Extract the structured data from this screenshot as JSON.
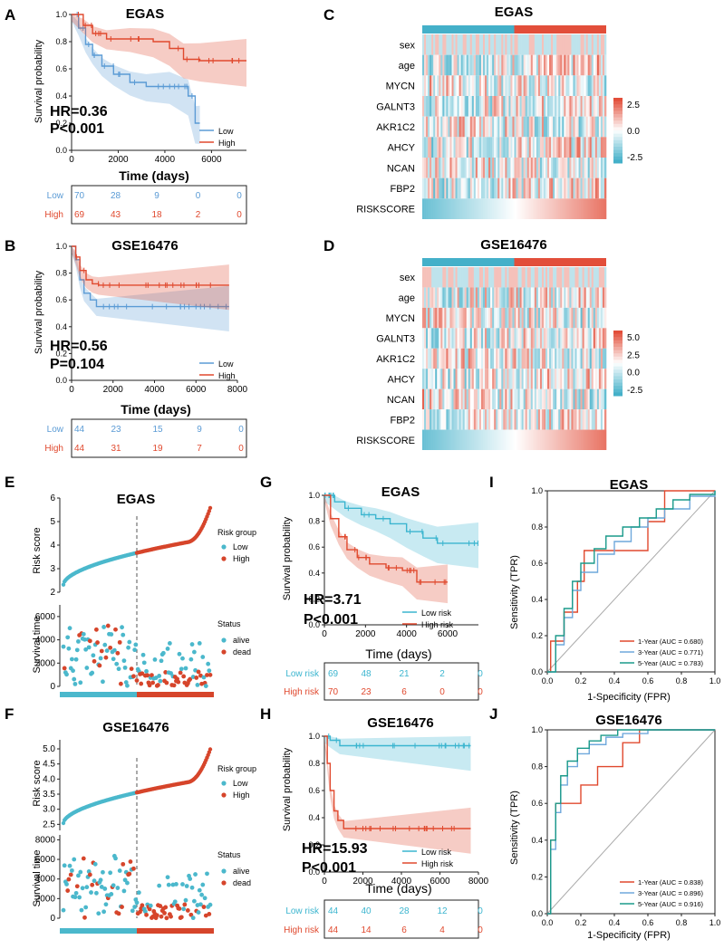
{
  "colors": {
    "low": "#5b9bd5",
    "high": "#e0492e",
    "lowrisk": "#3bb5cf",
    "risk_low": "#4bb8cc",
    "risk_high": "#d6452b",
    "roc1": "#e0492e",
    "roc3": "#6fa8dc",
    "roc5": "#1a9a8a",
    "hm_low": "#44b0c9",
    "hm_high": "#e24e3a"
  },
  "common": {
    "surv_ylabel": "Survival probability",
    "time_days": "Time (days)",
    "time_days_lc": "Time (days)",
    "low": "Low",
    "high": "High",
    "low_risk": "Low risk",
    "high_risk": "High risk",
    "risk_score": "Risk score",
    "survival_time": "Survival time",
    "risk_group": "Risk group",
    "status": "Status",
    "alive": "alive",
    "dead": "dead",
    "tpr": "Sensitivity (TPR)",
    "fpr": "1-Specificity (FPR)"
  },
  "panels": {
    "A": {
      "letter": "A",
      "title": "EGAS",
      "hr": "HR=0.36",
      "p": "P<0.001",
      "xticks": [
        "0",
        "2000",
        "4000",
        "6000"
      ],
      "yticks": [
        "0.0",
        "0.2",
        "0.4",
        "0.6",
        "0.8",
        "1.0"
      ],
      "risk_rows": [
        {
          "label": "Low",
          "values": [
            "70",
            "28",
            "9",
            "0",
            "0"
          ]
        },
        {
          "label": "High",
          "values": [
            "69",
            "43",
            "18",
            "2",
            "0"
          ]
        }
      ]
    },
    "B": {
      "letter": "B",
      "title": "GSE16476",
      "hr": "HR=0.56",
      "p": "P=0.104",
      "xticks": [
        "0",
        "2000",
        "4000",
        "6000",
        "8000"
      ],
      "yticks": [
        "0.0",
        "0.2",
        "0.4",
        "0.6",
        "0.8",
        "1.0"
      ],
      "risk_rows": [
        {
          "label": "Low",
          "values": [
            "44",
            "23",
            "15",
            "9",
            "0"
          ]
        },
        {
          "label": "High",
          "values": [
            "44",
            "31",
            "19",
            "7",
            "0"
          ]
        }
      ]
    },
    "C": {
      "letter": "C",
      "title": "EGAS",
      "rows": [
        "sex",
        "age",
        "MYCN",
        "GALNT3",
        "AKR1C2",
        "AHCY",
        "NCAN",
        "FBP2",
        "RISKSCORE"
      ],
      "legend": [
        "2.5",
        "0.0",
        "-2.5"
      ]
    },
    "D": {
      "letter": "D",
      "title": "GSE16476",
      "rows": [
        "sex",
        "age",
        "MYCN",
        "GALNT3",
        "AKR1C2",
        "AHCY",
        "NCAN",
        "FBP2",
        "RISKSCORE"
      ],
      "legend": [
        "5.0",
        "2.5",
        "0.0",
        "-2.5"
      ]
    },
    "E": {
      "letter": "E",
      "title": "EGAS",
      "score_ticks": [
        "2",
        "3",
        "4",
        "5",
        "6"
      ],
      "time_ticks": [
        "0",
        "2000",
        "4000",
        "6000"
      ]
    },
    "F": {
      "letter": "F",
      "title": "GSE16476",
      "score_ticks": [
        "2.5",
        "3.0",
        "3.5",
        "4.0",
        "4.5",
        "5.0"
      ],
      "time_ticks": [
        "0",
        "2000",
        "4000",
        "6000",
        "8000"
      ]
    },
    "G": {
      "letter": "G",
      "title": "EGAS",
      "hr": "HR=3.71",
      "p": "P<0.001",
      "xticks": [
        "0",
        "2000",
        "4000",
        "6000"
      ],
      "yticks": [
        "0.0",
        "0.2",
        "0.4",
        "0.6",
        "0.8",
        "1.0"
      ],
      "risk_rows": [
        {
          "label": "Low risk",
          "values": [
            "69",
            "48",
            "21",
            "2",
            "0"
          ]
        },
        {
          "label": "High risk",
          "values": [
            "70",
            "23",
            "6",
            "0",
            "0"
          ]
        }
      ]
    },
    "H": {
      "letter": "H",
      "title": "GSE16476",
      "hr": "HR=15.93",
      "p": "P<0.001",
      "xticks": [
        "0",
        "2000",
        "4000",
        "6000",
        "8000"
      ],
      "yticks": [
        "0.0",
        "0.2",
        "0.4",
        "0.6",
        "0.8",
        "1.0"
      ],
      "risk_rows": [
        {
          "label": "Low risk",
          "values": [
            "44",
            "40",
            "28",
            "12",
            "0"
          ]
        },
        {
          "label": "High risk",
          "values": [
            "44",
            "14",
            "6",
            "4",
            "0"
          ]
        }
      ]
    },
    "I": {
      "letter": "I",
      "title": "EGAS",
      "ticks": [
        "0.0",
        "0.2",
        "0.4",
        "0.6",
        "0.8",
        "1.0"
      ],
      "legend": [
        "1-Year (AUC = 0.680)",
        "3-Year (AUC = 0.771)",
        "5-Year (AUC = 0.783)"
      ]
    },
    "J": {
      "letter": "J",
      "title": "GSE16476",
      "ticks": [
        "0.0",
        "0.2",
        "0.4",
        "0.6",
        "0.8",
        "1.0"
      ],
      "legend": [
        "1-Year (AUC = 0.838)",
        "3-Year (AUC = 0.896)",
        "5-Year (AUC = 0.916)"
      ]
    }
  },
  "chart_data": [
    {
      "type": "line",
      "panel": "A",
      "title": "EGAS",
      "xlabel": "Time (days)",
      "ylabel": "Survival probability",
      "xlim": [
        0,
        7500
      ],
      "ylim": [
        0,
        1
      ],
      "series": [
        {
          "name": "Low",
          "x": [
            0,
            300,
            600,
            900,
            1300,
            1800,
            2500,
            3200,
            4200,
            5000,
            5300,
            5500
          ],
          "y": [
            1,
            0.9,
            0.78,
            0.7,
            0.62,
            0.56,
            0.5,
            0.47,
            0.47,
            0.4,
            0.2,
            0.2
          ]
        },
        {
          "name": "High",
          "x": [
            0,
            500,
            900,
            1500,
            2500,
            3500,
            4200,
            4800,
            5500,
            7500
          ],
          "y": [
            1,
            0.92,
            0.86,
            0.82,
            0.82,
            0.8,
            0.75,
            0.67,
            0.66,
            0.66
          ]
        }
      ]
    },
    {
      "type": "line",
      "panel": "B",
      "title": "GSE16476",
      "xlabel": "Time (days)",
      "ylabel": "Survival probability",
      "xlim": [
        0,
        8000
      ],
      "ylim": [
        0,
        1
      ],
      "series": [
        {
          "name": "Low",
          "x": [
            0,
            200,
            400,
            600,
            900,
            1200,
            7600
          ],
          "y": [
            1,
            0.9,
            0.75,
            0.65,
            0.6,
            0.55,
            0.55
          ]
        },
        {
          "name": "High",
          "x": [
            0,
            200,
            400,
            700,
            1000,
            1300,
            7600
          ],
          "y": [
            1,
            0.92,
            0.82,
            0.75,
            0.72,
            0.71,
            0.71
          ]
        }
      ]
    },
    {
      "type": "line",
      "panel": "G",
      "title": "EGAS",
      "xlabel": "Time (days)",
      "ylabel": "Survival probability",
      "xlim": [
        0,
        7500
      ],
      "ylim": [
        0,
        1
      ],
      "series": [
        {
          "name": "Low risk",
          "x": [
            0,
            500,
            1000,
            1800,
            2500,
            3200,
            4000,
            4800,
            5500,
            7500
          ],
          "y": [
            1,
            0.95,
            0.9,
            0.85,
            0.82,
            0.78,
            0.72,
            0.67,
            0.63,
            0.63
          ]
        },
        {
          "name": "High risk",
          "x": [
            0,
            300,
            700,
            1100,
            1600,
            2200,
            3000,
            3800,
            4500,
            6000
          ],
          "y": [
            1,
            0.82,
            0.68,
            0.58,
            0.52,
            0.47,
            0.44,
            0.42,
            0.33,
            0.33
          ]
        }
      ]
    },
    {
      "type": "line",
      "panel": "H",
      "title": "GSE16476",
      "xlabel": "Time (days)",
      "ylabel": "Survival probability",
      "xlim": [
        0,
        8000
      ],
      "ylim": [
        0,
        1
      ],
      "series": [
        {
          "name": "Low risk",
          "x": [
            0,
            300,
            800,
            7600
          ],
          "y": [
            1,
            0.97,
            0.93,
            0.93
          ]
        },
        {
          "name": "High risk",
          "x": [
            0,
            150,
            300,
            500,
            700,
            1000,
            7600
          ],
          "y": [
            1,
            0.8,
            0.6,
            0.45,
            0.38,
            0.32,
            0.32
          ]
        }
      ]
    },
    {
      "type": "line",
      "panel": "I",
      "title": "EGAS",
      "xlabel": "1-Specificity (FPR)",
      "ylabel": "Sensitivity (TPR)",
      "xlim": [
        0,
        1
      ],
      "ylim": [
        0,
        1
      ],
      "series": [
        {
          "name": "1-Year (AUC = 0.680)",
          "x": [
            0,
            0.02,
            0.02,
            0.1,
            0.1,
            0.18,
            0.22,
            0.3,
            0.35,
            0.55,
            0.6,
            0.7,
            0.8,
            1
          ],
          "y": [
            0,
            0,
            0.17,
            0.17,
            0.33,
            0.5,
            0.67,
            0.67,
            0.67,
            0.67,
            0.83,
            1,
            1,
            1
          ]
        },
        {
          "name": "3-Year (AUC = 0.771)",
          "x": [
            0,
            0.05,
            0.1,
            0.15,
            0.2,
            0.3,
            0.4,
            0.5,
            0.6,
            0.7,
            0.85,
            1
          ],
          "y": [
            0,
            0.15,
            0.3,
            0.45,
            0.55,
            0.65,
            0.72,
            0.8,
            0.85,
            0.9,
            0.97,
            1
          ]
        },
        {
          "name": "5-Year (AUC = 0.783)",
          "x": [
            0,
            0.05,
            0.1,
            0.15,
            0.2,
            0.28,
            0.35,
            0.45,
            0.55,
            0.65,
            0.75,
            0.85,
            1
          ],
          "y": [
            0,
            0.2,
            0.35,
            0.5,
            0.6,
            0.68,
            0.75,
            0.8,
            0.85,
            0.9,
            0.95,
            0.98,
            1
          ]
        }
      ]
    },
    {
      "type": "line",
      "panel": "J",
      "title": "GSE16476",
      "xlabel": "1-Specificity (FPR)",
      "ylabel": "Sensitivity (TPR)",
      "xlim": [
        0,
        1
      ],
      "ylim": [
        0,
        1
      ],
      "series": [
        {
          "name": "1-Year (AUC = 0.838)",
          "x": [
            0,
            0.02,
            0.02,
            0.05,
            0.08,
            0.15,
            0.2,
            0.3,
            0.35,
            0.45,
            0.5,
            0.55,
            1
          ],
          "y": [
            0,
            0,
            0.4,
            0.6,
            0.6,
            0.6,
            0.7,
            0.8,
            0.8,
            0.93,
            0.93,
            1,
            1
          ]
        },
        {
          "name": "3-Year (AUC = 0.896)",
          "x": [
            0,
            0.02,
            0.05,
            0.08,
            0.12,
            0.18,
            0.25,
            0.35,
            0.45,
            0.6,
            1
          ],
          "y": [
            0,
            0.35,
            0.55,
            0.7,
            0.8,
            0.87,
            0.92,
            0.96,
            0.98,
            1,
            1
          ]
        },
        {
          "name": "5-Year (AUC = 0.916)",
          "x": [
            0,
            0.02,
            0.05,
            0.08,
            0.12,
            0.18,
            0.25,
            0.32,
            0.42,
            0.55,
            1
          ],
          "y": [
            0,
            0.4,
            0.6,
            0.75,
            0.83,
            0.9,
            0.94,
            0.97,
            1,
            1,
            1
          ]
        }
      ]
    }
  ]
}
